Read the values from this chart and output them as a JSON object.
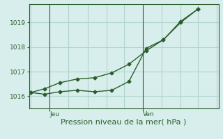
{
  "title": "",
  "xlabel": "Pression niveau de la mer( hPa )",
  "ylabel": "",
  "bg_color": "#d8eeed",
  "plot_bg_color": "#d8eeed",
  "grid_color": "#b0d4cc",
  "line_color": "#2a5e2a",
  "ylim": [
    1015.5,
    1019.75
  ],
  "xlim": [
    0,
    11
  ],
  "yticks": [
    1016,
    1017,
    1018,
    1019
  ],
  "xtick_positions": [
    1.2,
    6.6
  ],
  "xtick_labels": [
    "Jeu",
    "Ven"
  ],
  "line1_x": [
    0.1,
    0.9,
    1.8,
    2.8,
    3.8,
    4.8,
    5.8,
    6.8,
    7.8,
    8.8,
    9.8
  ],
  "line1_y": [
    1016.15,
    1016.08,
    1016.18,
    1016.24,
    1016.18,
    1016.24,
    1016.6,
    1017.95,
    1018.3,
    1019.0,
    1019.55
  ],
  "line2_x": [
    0.1,
    0.9,
    1.8,
    2.8,
    3.8,
    4.8,
    5.8,
    6.8,
    7.8,
    8.8,
    9.8
  ],
  "line2_y": [
    1016.15,
    1016.3,
    1016.55,
    1016.7,
    1016.75,
    1016.95,
    1017.3,
    1017.85,
    1018.3,
    1019.05,
    1019.55
  ],
  "marker_size": 2.5,
  "line_width": 1.0,
  "tick_label_color": "#2a5e2a",
  "axis_color": "#2a5e2a",
  "xlabel_fontsize": 8,
  "ytick_fontsize": 6.5,
  "xtick_fontsize": 6.5,
  "vline_positions": [
    1.2,
    6.6
  ],
  "grid_x_positions": [
    0.1,
    1.2,
    2.3,
    3.4,
    4.5,
    5.5,
    6.6,
    7.7,
    8.8,
    9.8,
    10.9
  ]
}
